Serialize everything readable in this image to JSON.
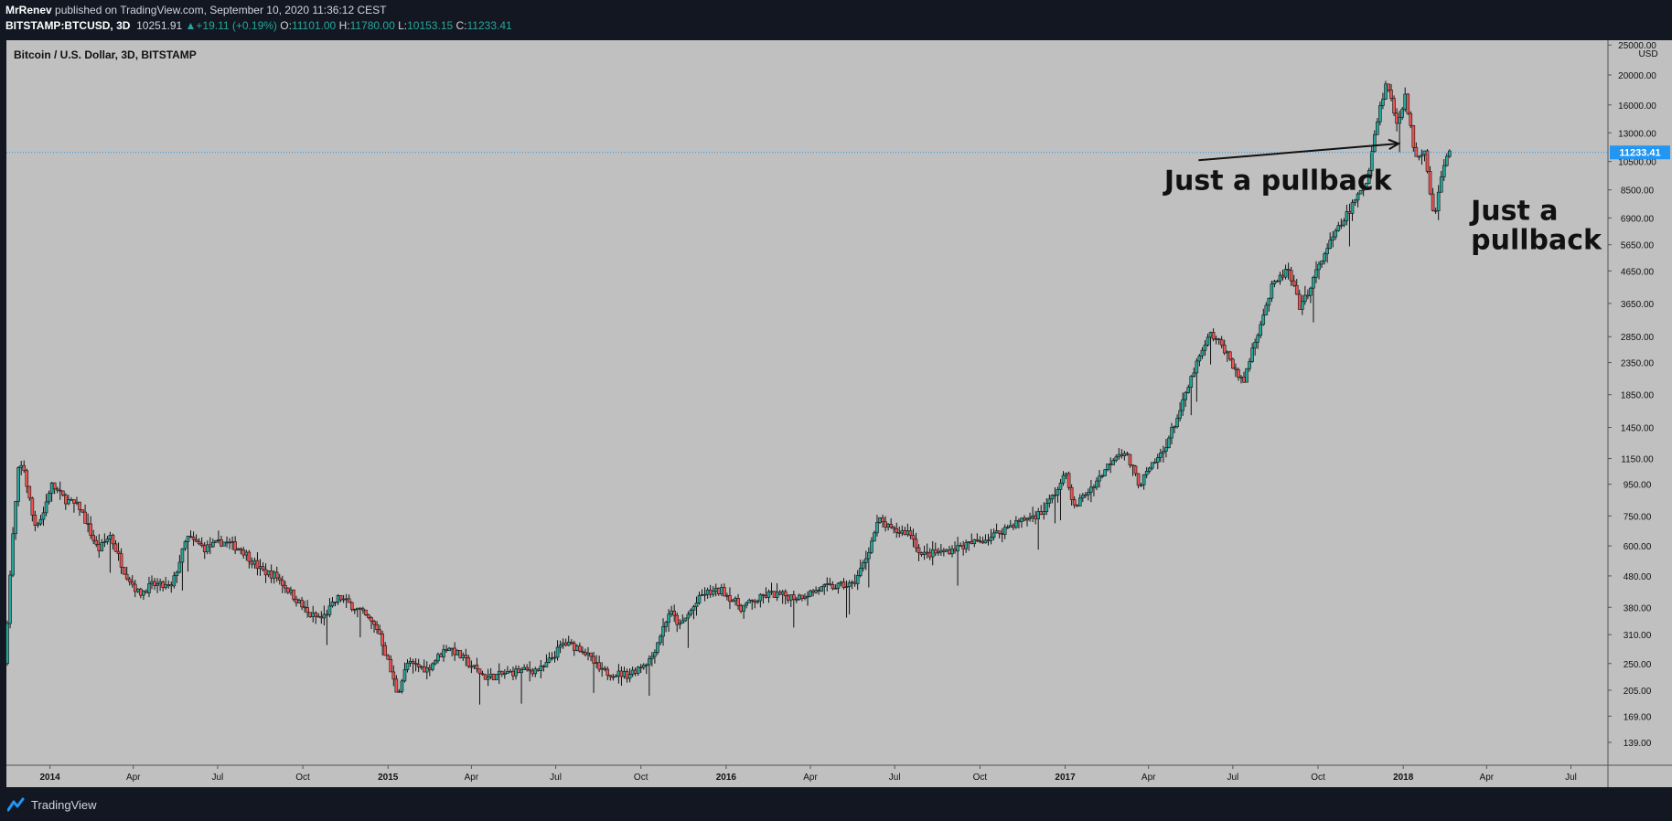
{
  "header": {
    "author": "MrRenev",
    "published_text": "published on TradingView.com, September 10, 2020 11:36:12 CEST",
    "symbol": "BITSTAMP:BTCUSD, 3D",
    "last": "10251.91",
    "change_arrow": "▲",
    "change": "+19.11 (+0.19%)",
    "o_label": "O:",
    "o_value": "11101.00",
    "h_label": "H:",
    "h_value": "11780.00",
    "l_label": "L:",
    "l_value": "10153.15",
    "c_label": "C:",
    "c_value": "11233.41"
  },
  "footer": {
    "brand": "TradingView",
    "logo_icon": "tradingview-logo-icon"
  },
  "colors": {
    "page_bg": "#131722",
    "plot_bg": "#c0c0c0",
    "up": "#26a69a",
    "down": "#ef5350",
    "price_line": "#2196f3",
    "text_dark": "#111111"
  },
  "chart_data": {
    "type": "candlestick",
    "title": "Bitcoin / U.S. Dollar, 3D, BITSTAMP",
    "price_axis": {
      "scale": "log",
      "unit": "USD",
      "ticks": [
        139,
        169,
        205,
        250,
        310,
        380,
        480,
        600,
        750,
        950,
        1150,
        1450,
        1850,
        2350,
        2850,
        3650,
        4650,
        5650,
        6900,
        8500,
        10500,
        13000,
        16000,
        20000,
        25000
      ],
      "tick_labels": [
        "139.00",
        "169.00",
        "205.00",
        "250.00",
        "310.00",
        "380.00",
        "480.00",
        "600.00",
        "750.00",
        "950.00",
        "1150.00",
        "1450.00",
        "1850.00",
        "2350.00",
        "2850.00",
        "3650.00",
        "4650.00",
        "5650.00",
        "6900.00",
        "8500.00",
        "10500.00",
        "13000.00",
        "16000.00",
        "20000.00",
        "25000.00"
      ]
    },
    "time_axis": {
      "start": "2013-11-15",
      "end": "2018-08-10",
      "ticks": [
        {
          "date": "2014-01-01",
          "label": "2014",
          "major": true
        },
        {
          "date": "2014-04-01",
          "label": "Apr",
          "major": false
        },
        {
          "date": "2014-07-01",
          "label": "Jul",
          "major": false
        },
        {
          "date": "2014-10-01",
          "label": "Oct",
          "major": false
        },
        {
          "date": "2015-01-01",
          "label": "2015",
          "major": true
        },
        {
          "date": "2015-04-01",
          "label": "Apr",
          "major": false
        },
        {
          "date": "2015-07-01",
          "label": "Jul",
          "major": false
        },
        {
          "date": "2015-10-01",
          "label": "Oct",
          "major": false
        },
        {
          "date": "2016-01-01",
          "label": "2016",
          "major": true
        },
        {
          "date": "2016-04-01",
          "label": "Apr",
          "major": false
        },
        {
          "date": "2016-07-01",
          "label": "Jul",
          "major": false
        },
        {
          "date": "2016-10-01",
          "label": "Oct",
          "major": false
        },
        {
          "date": "2017-01-01",
          "label": "2017",
          "major": true
        },
        {
          "date": "2017-04-01",
          "label": "Apr",
          "major": false
        },
        {
          "date": "2017-07-01",
          "label": "Jul",
          "major": false
        },
        {
          "date": "2017-10-01",
          "label": "Oct",
          "major": false
        },
        {
          "date": "2018-01-01",
          "label": "2018",
          "major": true
        },
        {
          "date": "2018-04-01",
          "label": "Apr",
          "major": false
        },
        {
          "date": "2018-07-01",
          "label": "Jul",
          "major": false
        }
      ]
    },
    "last_price": 11233.41,
    "last_price_label": "11233.41",
    "annotations": [
      {
        "text": "Just a pullback",
        "lines": [
          "Just a pullback"
        ],
        "arrow_to": {
          "date": "2017-12-27",
          "price": 12000
        },
        "arrow_from": {
          "date": "2017-05-25",
          "price": 10600
        },
        "anchor": {
          "date": "2017-04-18",
          "price": 8500
        }
      },
      {
        "text": "Just a pullback",
        "lines": [
          "Just a",
          "pullback"
        ],
        "anchor": {
          "date": "2018-03-15",
          "price": 6800
        }
      }
    ],
    "anchors": [
      [
        "2013-11-16",
        250
      ],
      [
        "2013-11-24",
        600
      ],
      [
        "2013-12-01",
        1050
      ],
      [
        "2013-12-06",
        1100
      ],
      [
        "2013-12-18",
        700
      ],
      [
        "2013-12-27",
        750
      ],
      [
        "2014-01-05",
        950
      ],
      [
        "2014-01-20",
        850
      ],
      [
        "2014-02-05",
        800
      ],
      [
        "2014-02-25",
        580
      ],
      [
        "2014-03-10",
        650
      ],
      [
        "2014-03-25",
        500
      ],
      [
        "2014-04-10",
        420
      ],
      [
        "2014-04-25",
        450
      ],
      [
        "2014-05-15",
        440
      ],
      [
        "2014-06-01",
        640
      ],
      [
        "2014-06-20",
        590
      ],
      [
        "2014-07-10",
        620
      ],
      [
        "2014-07-30",
        585
      ],
      [
        "2014-08-20",
        500
      ],
      [
        "2014-09-05",
        480
      ],
      [
        "2014-09-25",
        410
      ],
      [
        "2014-10-10",
        360
      ],
      [
        "2014-10-25",
        350
      ],
      [
        "2014-11-12",
        410
      ],
      [
        "2014-12-05",
        370
      ],
      [
        "2014-12-25",
        320
      ],
      [
        "2015-01-14",
        200
      ],
      [
        "2015-01-25",
        250
      ],
      [
        "2015-02-15",
        240
      ],
      [
        "2015-03-10",
        285
      ],
      [
        "2015-04-01",
        250
      ],
      [
        "2015-04-20",
        225
      ],
      [
        "2015-05-20",
        235
      ],
      [
        "2015-06-20",
        240
      ],
      [
        "2015-07-12",
        290
      ],
      [
        "2015-08-01",
        280
      ],
      [
        "2015-08-22",
        235
      ],
      [
        "2015-09-20",
        230
      ],
      [
        "2015-10-15",
        260
      ],
      [
        "2015-11-04",
        370
      ],
      [
        "2015-11-15",
        330
      ],
      [
        "2015-12-10",
        420
      ],
      [
        "2015-12-31",
        430
      ],
      [
        "2016-01-20",
        380
      ],
      [
        "2016-02-20",
        420
      ],
      [
        "2016-03-20",
        410
      ],
      [
        "2016-04-20",
        440
      ],
      [
        "2016-05-20",
        450
      ],
      [
        "2016-06-01",
        530
      ],
      [
        "2016-06-17",
        730
      ],
      [
        "2016-07-01",
        670
      ],
      [
        "2016-07-20",
        665
      ],
      [
        "2016-08-02",
        560
      ],
      [
        "2016-08-25",
        575
      ],
      [
        "2016-09-20",
        605
      ],
      [
        "2016-10-15",
        640
      ],
      [
        "2016-11-10",
        710
      ],
      [
        "2016-12-10",
        770
      ],
      [
        "2016-12-31",
        960
      ],
      [
        "2017-01-06",
        1050
      ],
      [
        "2017-01-12",
        790
      ],
      [
        "2017-02-10",
        1000
      ],
      [
        "2017-03-01",
        1200
      ],
      [
        "2017-03-10",
        1200
      ],
      [
        "2017-03-25",
        950
      ],
      [
        "2017-04-20",
        1220
      ],
      [
        "2017-05-10",
        1700
      ],
      [
        "2017-05-25",
        2300
      ],
      [
        "2017-06-10",
        2900
      ],
      [
        "2017-06-25",
        2600
      ],
      [
        "2017-07-15",
        2000
      ],
      [
        "2017-07-25",
        2600
      ],
      [
        "2017-08-15",
        4100
      ],
      [
        "2017-09-01",
        4700
      ],
      [
        "2017-09-15",
        3500
      ],
      [
        "2017-10-12",
        5400
      ],
      [
        "2017-11-08",
        7400
      ],
      [
        "2017-11-25",
        9000
      ],
      [
        "2017-12-08",
        15000
      ],
      [
        "2017-12-17",
        19000
      ],
      [
        "2017-12-28",
        14000
      ],
      [
        "2018-01-06",
        17000
      ],
      [
        "2018-01-17",
        11000
      ],
      [
        "2018-01-27",
        11500
      ],
      [
        "2018-02-06",
        6900
      ],
      [
        "2018-02-16",
        10000
      ],
      [
        "2018-02-22",
        11233
      ]
    ]
  }
}
